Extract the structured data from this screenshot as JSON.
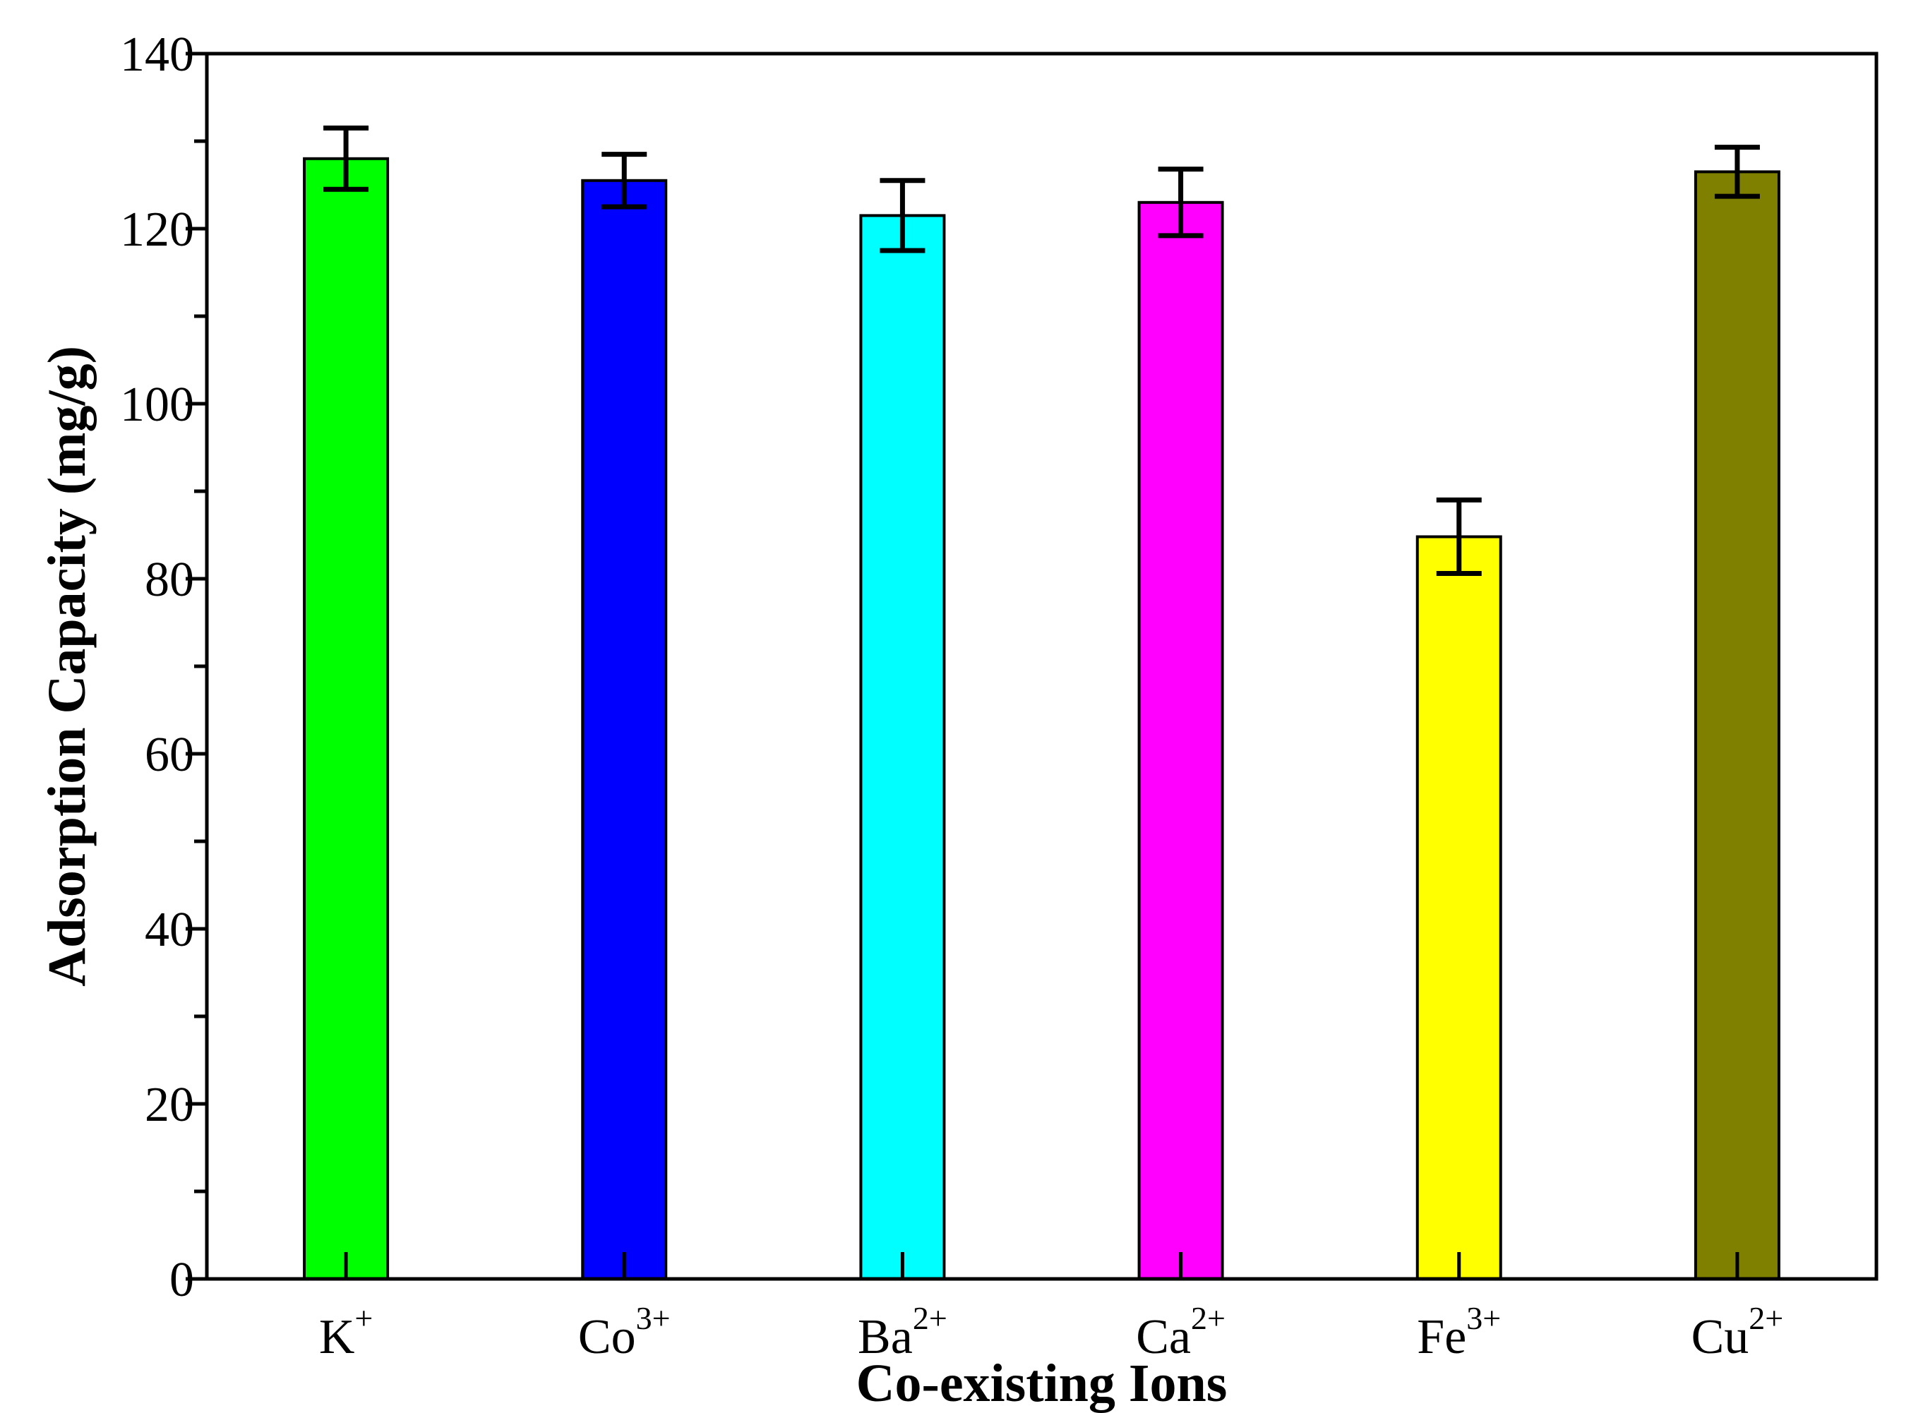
{
  "chart_data": {
    "type": "bar",
    "xlabel": "Co-existing Ions",
    "ylabel": "Adsorption Capacity (mg/g)",
    "ylim": [
      0,
      140
    ],
    "yticks": [
      0,
      20,
      40,
      60,
      80,
      100,
      120,
      140
    ],
    "categories": [
      {
        "base": "K",
        "charge": "+"
      },
      {
        "base": "Co",
        "charge": "3+"
      },
      {
        "base": "Ba",
        "charge": "2+"
      },
      {
        "base": "Ca",
        "charge": "2+"
      },
      {
        "base": "Fe",
        "charge": "3+"
      },
      {
        "base": "Cu",
        "charge": "2+"
      }
    ],
    "values": [
      128.0,
      125.5,
      121.5,
      123.0,
      84.8,
      126.5
    ],
    "errors": [
      3.5,
      3.0,
      4.0,
      3.8,
      4.2,
      2.8
    ],
    "colors": [
      "#00ff00",
      "#0000ff",
      "#00ffff",
      "#ff00ff",
      "#ffff00",
      "#808000"
    ],
    "grid": false,
    "legend": "none"
  }
}
